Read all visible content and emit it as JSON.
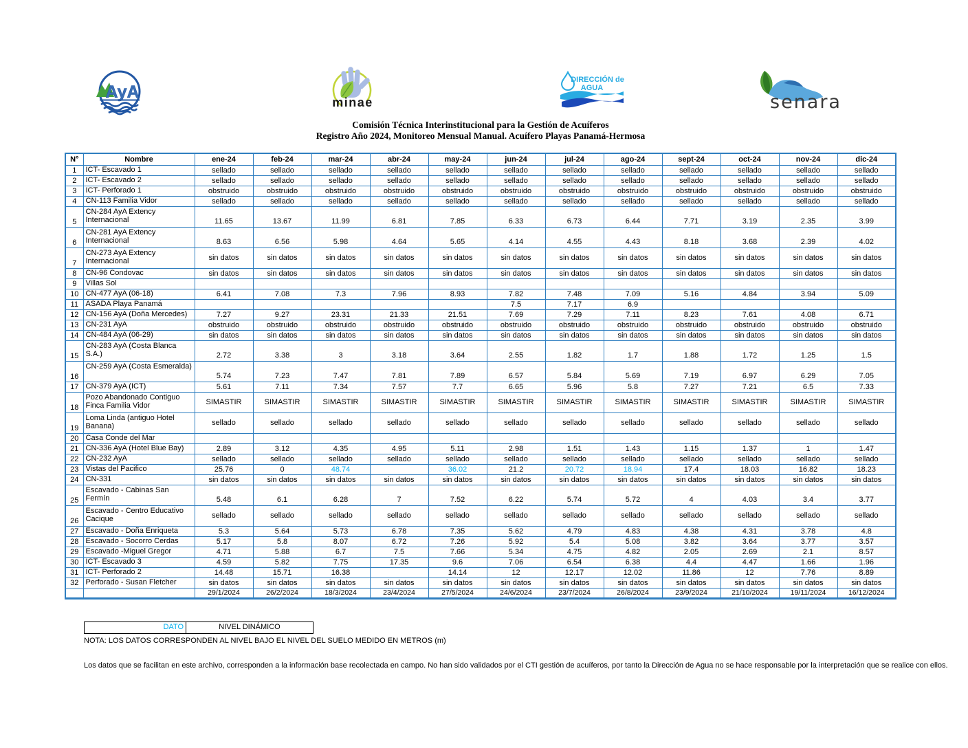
{
  "colors": {
    "grid_blue": "#2E7EC0",
    "cyan": "#00AEEF"
  },
  "header": {
    "title_line1": "Comisión Técnica Interinstitucional para la Gestión de Acuíferos",
    "title_line2": "Registro Año 2024, Monitoreo Mensual Manual. Acuífero Playas Panamá-Hermosa",
    "logos": {
      "aya_text": "AyA",
      "minae_text": "minae",
      "da_line1": "DIRECCIÓN de",
      "da_line2": "AGUA",
      "senara_text": "senara"
    }
  },
  "table": {
    "columns": [
      "N°",
      "Nombre",
      "ene-24",
      "feb-24",
      "mar-24",
      "abr-24",
      "may-24",
      "jun-24",
      "jul-24",
      "ago-24",
      "sept-24",
      "oct-24",
      "nov-24",
      "dic-24"
    ],
    "rows": [
      {
        "num": "1",
        "name": "ICT- Escavado 1",
        "values": [
          "sellado",
          "sellado",
          "sellado",
          "sellado",
          "sellado",
          "sellado",
          "sellado",
          "sellado",
          "sellado",
          "sellado",
          "sellado",
          "sellado"
        ]
      },
      {
        "num": "2",
        "name": "ICT- Escavado 2",
        "values": [
          "sellado",
          "sellado",
          "sellado",
          "sellado",
          "sellado",
          "sellado",
          "sellado",
          "sellado",
          "sellado",
          "sellado",
          "sellado",
          "sellado"
        ]
      },
      {
        "num": "3",
        "name": "ICT- Perforado 1",
        "values": [
          "obstruido",
          "obstruido",
          "obstruido",
          "obstruido",
          "obstruido",
          "obstruido",
          "obstruido",
          "obstruido",
          "obstruido",
          "obstruido",
          "obstruido",
          "obstruido"
        ]
      },
      {
        "num": "4",
        "name": "CN-113 Familia Vidor",
        "values": [
          "sellado",
          "sellado",
          "sellado",
          "sellado",
          "sellado",
          "sellado",
          "sellado",
          "sellado",
          "sellado",
          "sellado",
          "sellado",
          "sellado"
        ]
      },
      {
        "num": "5",
        "name": "CN-284 AyA Extency Internacional",
        "tall": true,
        "va": "bottom",
        "values": [
          "11.65",
          "13.67",
          "11.99",
          "6.81",
          "7.85",
          "6.33",
          "6.73",
          "6.44",
          "7.71",
          "3.19",
          "2.35",
          "3.99"
        ]
      },
      {
        "num": "6",
        "name": "CN-281 AyA Extency Internacional",
        "tall": true,
        "va": "bottom",
        "values": [
          "8.63",
          "6.56",
          "5.98",
          "4.64",
          "5.65",
          "4.14",
          "4.55",
          "4.43",
          "8.18",
          "3.68",
          "2.39",
          "4.02"
        ]
      },
      {
        "num": "7",
        "name": "CN-273  AyA  Extency Internacional",
        "tall": true,
        "values": [
          "sin datos",
          "sin datos",
          "sin datos",
          "sin datos",
          "sin datos",
          "sin datos",
          "sin datos",
          "sin datos",
          "sin datos",
          "sin datos",
          "sin datos",
          "sin datos"
        ]
      },
      {
        "num": "8",
        "name": "CN-96 Condovac",
        "values": [
          "sin datos",
          "sin datos",
          "sin datos",
          "sin datos",
          "sin datos",
          "sin datos",
          "sin datos",
          "sin datos",
          "sin datos",
          "sin datos",
          "sin datos",
          "sin datos"
        ]
      },
      {
        "num": "9",
        "name": "Villas Sol",
        "values": [
          "",
          "",
          "",
          "",
          "",
          "",
          "",
          "",
          "",
          "",
          "",
          ""
        ]
      },
      {
        "num": "10",
        "name": "CN-477 AyA (06-18)",
        "values": [
          "6.41",
          "7.08",
          "7.3",
          "7.96",
          "8.93",
          "7.82",
          "7.48",
          "7.09",
          "5.16",
          "4.84",
          "3.94",
          "5.09"
        ]
      },
      {
        "num": "11",
        "name": "ASADA Playa Panamá",
        "values": [
          "",
          "",
          "",
          "",
          "",
          "7.5",
          "7.17",
          "6.9",
          "",
          "",
          "",
          ""
        ]
      },
      {
        "num": "12",
        "name": "CN-156  AyA (Doña Mercedes)",
        "values": [
          "7.27",
          "9.27",
          "23.31",
          "21.33",
          "21.51",
          "7.69",
          "7.29",
          "7.11",
          "8.23",
          "7.61",
          "4.08",
          "6.71"
        ]
      },
      {
        "num": "13",
        "name": " CN-231 AyA",
        "values": [
          "obstruido",
          "obstruido",
          "obstruido",
          "obstruido",
          "obstruido",
          "obstruido",
          "obstruido",
          "obstruido",
          "obstruido",
          "obstruido",
          "obstruido",
          "obstruido"
        ]
      },
      {
        "num": "14",
        "name": "CN-484 AyA (06-29)",
        "values": [
          "sin datos",
          "sin datos",
          "sin datos",
          "sin datos",
          "sin datos",
          "sin datos",
          "sin datos",
          "sin datos",
          "sin datos",
          "sin datos",
          "sin datos",
          "sin datos"
        ]
      },
      {
        "num": "15",
        "name": "CN-283 AyA (Costa Blanca S.A.)",
        "tall": true,
        "va": "bottom",
        "values": [
          "2.72",
          "3.38",
          "3",
          "3.18",
          "3.64",
          "2.55",
          "1.82",
          "1.7",
          "1.88",
          "1.72",
          "1.25",
          "1.5"
        ]
      },
      {
        "num": "16",
        "name": "CN-259 AyA (Costa Esmeralda)",
        "tall": true,
        "va": "bottom",
        "values": [
          "5.74",
          "7.23",
          "7.47",
          "7.81",
          "7.89",
          "6.57",
          "5.84",
          "5.69",
          "7.19",
          "6.97",
          "6.29",
          "7.05"
        ]
      },
      {
        "num": "17",
        "name": "CN-379 AyA (ICT)",
        "values": [
          "5.61",
          "7.11",
          "7.34",
          "7.57",
          "7.7",
          "6.65",
          "5.96",
          "5.8",
          "7.27",
          "7.21",
          "6.5",
          "7.33"
        ]
      },
      {
        "num": "18",
        "name": "Pozo Abandonado Contiguo Finca Familia Vidor",
        "tall": true,
        "values": [
          "SIMASTIR",
          "SIMASTIR",
          "SIMASTIR",
          "SIMASTIR",
          "SIMASTIR",
          "SIMASTIR",
          "SIMASTIR",
          "SIMASTIR",
          "SIMASTIR",
          "SIMASTIR",
          "SIMASTIR",
          "SIMASTIR"
        ]
      },
      {
        "num": "19",
        "name": "Loma Linda (antiguo Hotel Banana)",
        "tall": true,
        "values": [
          "sellado",
          "sellado",
          "sellado",
          "sellado",
          "sellado",
          "sellado",
          "sellado",
          "sellado",
          "sellado",
          "sellado",
          "sellado",
          "sellado"
        ]
      },
      {
        "num": "20",
        "name": "Casa Conde del Mar",
        "values": [
          "",
          "",
          "",
          "",
          "",
          "",
          "",
          "",
          "",
          "",
          "",
          ""
        ]
      },
      {
        "num": "21",
        "name": "CN-336 AyA (Hotel Blue Bay)",
        "values": [
          "2.89",
          "3.12",
          "4.35",
          "4.95",
          "5.11",
          "2.98",
          "1.51",
          "1.43",
          "1.15",
          "1.37",
          "1",
          "1.47"
        ]
      },
      {
        "num": "22",
        "name": "CN-232 AyA",
        "values": [
          "sellado",
          "sellado",
          "sellado",
          "sellado",
          "sellado",
          "sellado",
          "sellado",
          "sellado",
          "sellado",
          "sellado",
          "sellado",
          "sellado"
        ]
      },
      {
        "num": "23",
        "name": "Vistas del Pacifico",
        "cyan": [
          2,
          4,
          6,
          7
        ],
        "values": [
          "25.76",
          "0",
          "48.74",
          "",
          "36.02",
          "21.2",
          "20.72",
          "18.94",
          "17.4",
          "18.03",
          "16.82",
          "18.23"
        ]
      },
      {
        "num": "24",
        "name": "CN-331",
        "values": [
          "sin datos",
          "sin datos",
          "sin datos",
          "sin datos",
          "sin datos",
          "sin datos",
          "sin datos",
          "sin datos",
          "sin datos",
          "sin datos",
          "sin datos",
          "sin datos"
        ]
      },
      {
        "num": "25",
        "name": "Escavado - Cabinas San Fermín",
        "tall": true,
        "va": "bottom",
        "values": [
          "5.48",
          "6.1",
          "6.28",
          "7",
          "7.52",
          "6.22",
          "5.74",
          "5.72",
          "4",
          "4.03",
          "3.4",
          "3.77"
        ]
      },
      {
        "num": "26",
        "name": "Escavado - Centro Educativo Cacique",
        "tall": true,
        "values": [
          "sellado",
          "sellado",
          "sellado",
          "sellado",
          "sellado",
          "sellado",
          "sellado",
          "sellado",
          "sellado",
          "sellado",
          "sellado",
          "sellado"
        ]
      },
      {
        "num": "27",
        "name": "Escavado - Doña Enriqueta",
        "values": [
          "5.3",
          "5.64",
          "5.73",
          "6.78",
          "7.35",
          "5.62",
          "4.79",
          "4.83",
          "4.38",
          "4.31",
          "3.78",
          "4.8"
        ]
      },
      {
        "num": "28",
        "name": "Escavado - Socorro Cerdas",
        "values": [
          "5.17",
          "5.8",
          "8.07",
          "6.72",
          "7.26",
          "5.92",
          "5.4",
          "5.08",
          "3.82",
          "3.64",
          "3.77",
          "3.57"
        ]
      },
      {
        "num": "29",
        "name": "Escavado -Miguel Gregor",
        "values": [
          "4.71",
          "5.88",
          "6.7",
          "7.5",
          "7.66",
          "5.34",
          "4.75",
          "4.82",
          "2.05",
          "2.69",
          "2.1",
          "8.57"
        ]
      },
      {
        "num": "30",
        "name": "ICT- Escavado 3",
        "values": [
          "4.59",
          "5.82",
          "7.75",
          "17.35",
          "9.6",
          "7.06",
          "6.54",
          "6.38",
          "4.4",
          "4.47",
          "1.66",
          "1.96"
        ]
      },
      {
        "num": "31",
        "name": "ICT- Perforado 2",
        "values": [
          "14.48",
          "15.71",
          "16.38",
          "",
          "14.14",
          "12",
          "12.17",
          "12.02",
          "11.86",
          "12",
          "7.76",
          "8.89"
        ]
      },
      {
        "num": "32",
        "name": "Perforado - Susan Fletcher",
        "values": [
          "sin datos",
          "sin datos",
          "sin datos",
          "sin datos",
          "sin datos",
          "sin datos",
          "sin datos",
          "sin datos",
          "sin datos",
          "sin datos",
          "sin datos",
          "sin datos"
        ]
      }
    ],
    "dates_row": [
      "29/1/2024",
      "26/2/2024",
      "18/3/2024",
      "23/4/2024",
      "27/5/2024",
      "24/6/2024",
      "23/7/2024",
      "26/8/2024",
      "23/9/2024",
      "21/10/2024",
      "19/11/2024",
      "16/12/2024"
    ]
  },
  "legend": {
    "label": "DATO",
    "value": "NIVEL DINÁMICO"
  },
  "notes": {
    "nota": "NOTA: LOS DATOS CORRESPONDEN AL NIVEL BAJO EL NIVEL DEL SUELO MEDIDO EN METROS (m)",
    "disclaimer": "Los datos que se facilitan en este archivo, corresponden a la información base recolectada en campo. No han sido validados por el CTI gestión de acuíferos, por tanto la Dirección de Agua no se hace responsable por la interpretación que se realice con ellos."
  }
}
